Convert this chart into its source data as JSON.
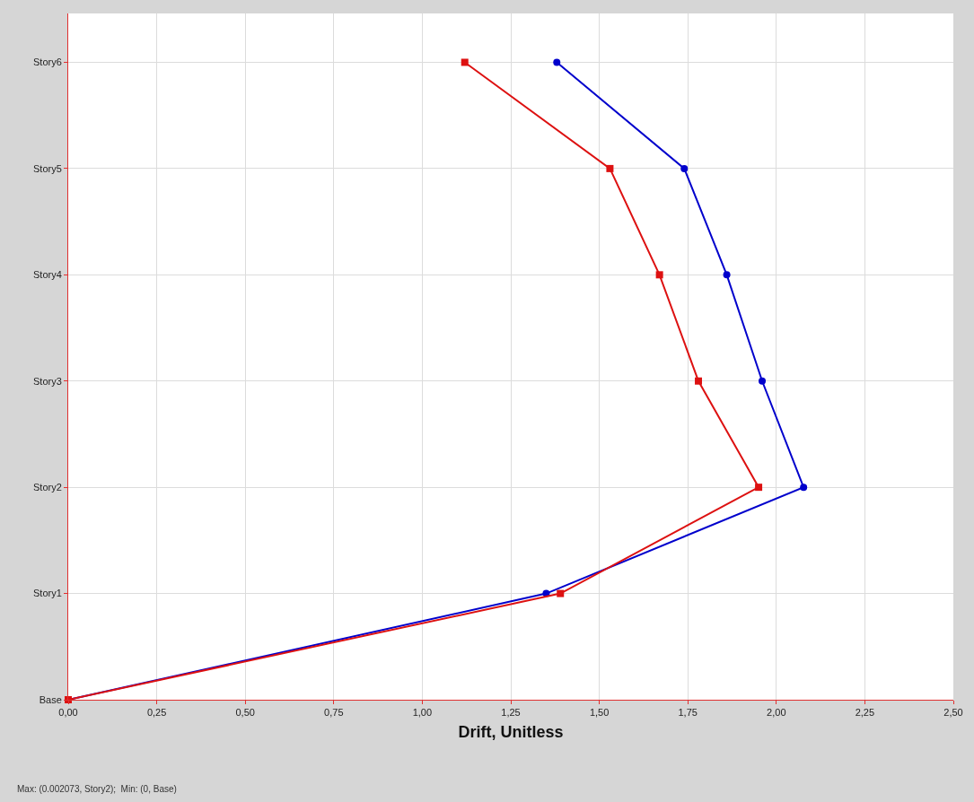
{
  "chart_data": {
    "type": "line",
    "orientation": "horizontal",
    "xlabel": "Drift, Unitless",
    "categories": [
      "Story6",
      "Story5",
      "Story4",
      "Story3",
      "Story2",
      "Story1",
      "Base"
    ],
    "series": [
      {
        "color": "#0000cc",
        "marker": "circle",
        "values": [
          1.38,
          1.74,
          1.86,
          1.96,
          2.077,
          1.35,
          0
        ]
      },
      {
        "color": "#dd1111",
        "marker": "square",
        "values": [
          1.12,
          1.53,
          1.67,
          1.78,
          1.95,
          1.39,
          0
        ]
      }
    ],
    "xlim": [
      0,
      2.5
    ],
    "xticks": [
      {
        "value": 0,
        "label": "0,00"
      },
      {
        "value": 0.25,
        "label": "0,25"
      },
      {
        "value": 0.5,
        "label": "0,50"
      },
      {
        "value": 0.75,
        "label": "0,75"
      },
      {
        "value": 1,
        "label": "1,00"
      },
      {
        "value": 1.25,
        "label": "1,25"
      },
      {
        "value": 1.5,
        "label": "1,50"
      },
      {
        "value": 1.75,
        "label": "1,75"
      },
      {
        "value": 2,
        "label": "2,00"
      },
      {
        "value": 2.25,
        "label": "2,25"
      },
      {
        "value": 2.5,
        "label": "2,50"
      }
    ],
    "grid": true,
    "line_style": "solid",
    "annotations": [
      "Max: (0.002073, Story2);  Min: (0, Base)"
    ]
  }
}
